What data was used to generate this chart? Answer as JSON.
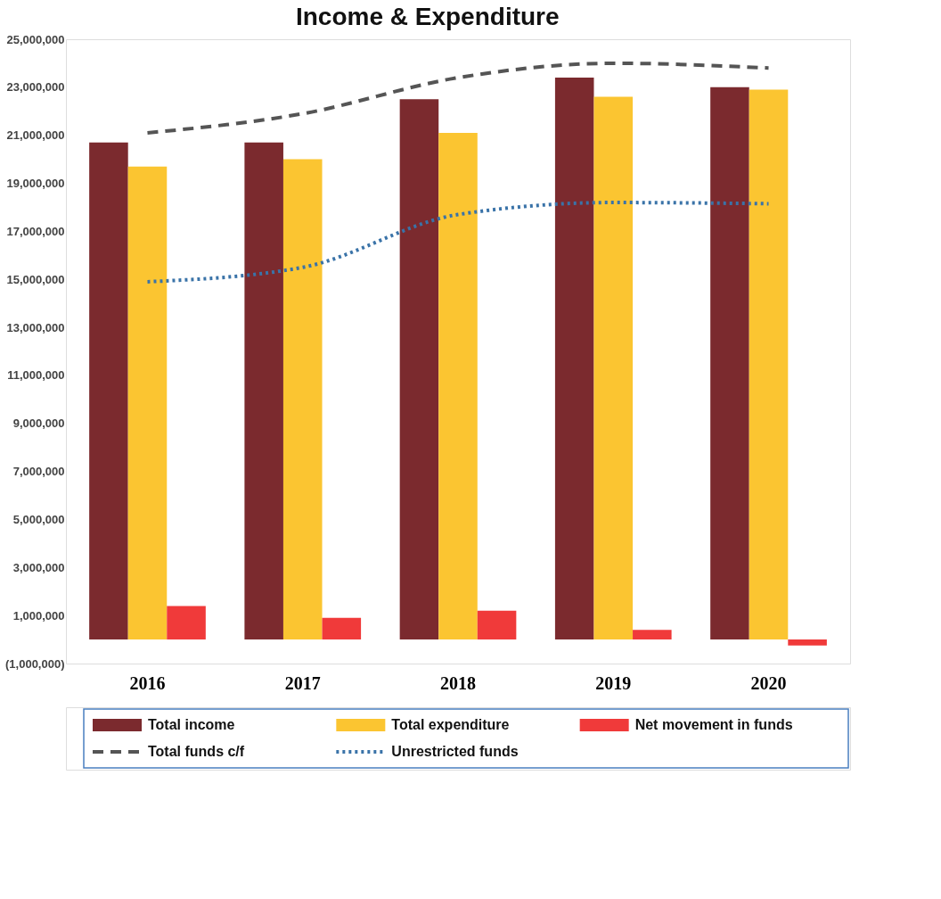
{
  "chart_data": {
    "type": "bar",
    "title": "Income & Expenditure",
    "categories": [
      "2016",
      "2017",
      "2018",
      "2019",
      "2020"
    ],
    "series": [
      {
        "name": "Total income",
        "color": "#7b2a2e",
        "values": [
          20700000,
          20700000,
          22500000,
          23400000,
          23000000
        ]
      },
      {
        "name": "Total expenditure",
        "color": "#fbc531",
        "values": [
          19700000,
          20000000,
          21100000,
          22600000,
          22900000
        ]
      },
      {
        "name": "Net movement in funds",
        "color": "#f03a3a",
        "values": [
          1400000,
          900000,
          1200000,
          400000,
          -250000
        ]
      },
      {
        "name": "Total funds c/f",
        "type": "line",
        "line_style": "dashed",
        "color": "#555555",
        "values": [
          21100000,
          21900000,
          23400000,
          24000000,
          23800000
        ]
      },
      {
        "name": "Unrestricted funds",
        "type": "line",
        "line_style": "dotted",
        "color": "#3a73a8",
        "values": [
          14900000,
          15500000,
          17700000,
          18200000,
          18150000
        ]
      }
    ],
    "ylim": [
      -1000000,
      25000000
    ],
    "yticks": [
      {
        "value": -1000000,
        "label": "(1,000,000)"
      },
      {
        "value": 1000000,
        "label": "1,000,000"
      },
      {
        "value": 3000000,
        "label": "3,000,000"
      },
      {
        "value": 5000000,
        "label": "5,000,000"
      },
      {
        "value": 7000000,
        "label": "7,000,000"
      },
      {
        "value": 9000000,
        "label": "9,000,000"
      },
      {
        "value": 11000000,
        "label": "11,000,000"
      },
      {
        "value": 13000000,
        "label": "13,000,000"
      },
      {
        "value": 15000000,
        "label": "15,000,000"
      },
      {
        "value": 17000000,
        "label": "17,000,000"
      },
      {
        "value": 19000000,
        "label": "19,000,000"
      },
      {
        "value": 21000000,
        "label": "21,000,000"
      },
      {
        "value": 23000000,
        "label": "23,000,000"
      },
      {
        "value": 25000000,
        "label": "25,000,000"
      }
    ],
    "grid": false,
    "legend": "bottom"
  }
}
